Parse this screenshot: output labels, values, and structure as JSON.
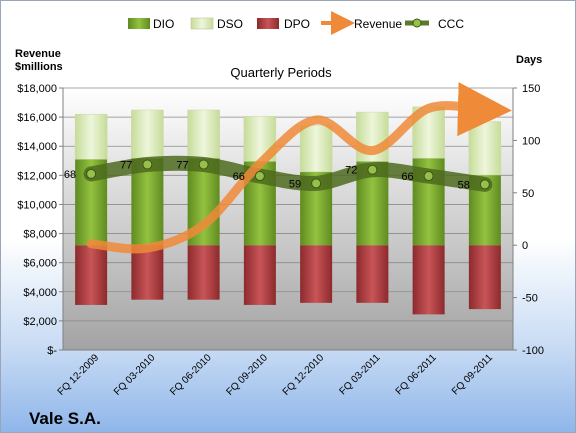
{
  "left_axis_title_line1": "Revenue",
  "left_axis_title_line2": "$millions",
  "right_axis_title": "Days",
  "company": "Vale S.A.",
  "legend": [
    {
      "key": "DIO",
      "label": "DIO"
    },
    {
      "key": "DSO",
      "label": "DSO"
    },
    {
      "key": "DPO",
      "label": "DPO"
    },
    {
      "key": "Revenue",
      "label": "Revenue"
    },
    {
      "key": "CCC",
      "label": "CCC"
    }
  ],
  "colors": {
    "DIO": "#77a830",
    "DSO": "#d6e8b0",
    "DPO": "#b23b3e",
    "Revenue": "#ee8a38",
    "CCC": "#5d7a2a"
  },
  "chart_data": {
    "type": "bar",
    "title": "Quarterly Periods",
    "categories": [
      "FQ 12-2009",
      "FQ 03-2010",
      "FQ 06-2010",
      "FQ 09-2010",
      "FQ 12-2010",
      "FQ 03-2011",
      "FQ 06-2011",
      "FQ 09-2011"
    ],
    "left_axis": {
      "min": 0,
      "max": 18000,
      "step": 2000,
      "format": "dollar"
    },
    "right_axis": {
      "min": -100,
      "max": 150,
      "step": 50
    },
    "left_tick_labels": [
      "$-",
      "$2,000",
      "$4,000",
      "$6,000",
      "$8,000",
      "$10,000",
      "$12,000",
      "$14,000",
      "$16,000",
      "$18,000"
    ],
    "right_tick_labels": [
      "-100",
      "-50",
      "0",
      "50",
      "100",
      "150"
    ],
    "series": [
      {
        "name": "DPO",
        "axis": "right",
        "type": "bar",
        "values": [
          -57,
          -52,
          -52,
          -57,
          -55,
          -55,
          -66,
          -61
        ]
      },
      {
        "name": "DIO",
        "axis": "right",
        "type": "bar",
        "values": [
          82,
          83,
          83,
          80,
          70,
          80,
          83,
          67
        ]
      },
      {
        "name": "DSO",
        "axis": "right",
        "type": "bar",
        "values": [
          43,
          46,
          46,
          43,
          44,
          47,
          49,
          51
        ]
      },
      {
        "name": "Revenue",
        "axis": "left",
        "type": "line",
        "values": [
          7300,
          7000,
          8600,
          12800,
          15800,
          13700,
          16600,
          16500
        ]
      },
      {
        "name": "CCC",
        "axis": "right",
        "type": "line",
        "values": [
          68,
          77,
          77,
          66,
          59,
          72,
          66,
          58
        ],
        "labels": [
          "68",
          "77",
          "77",
          "66",
          "59",
          "72",
          "66",
          "58"
        ]
      }
    ]
  }
}
